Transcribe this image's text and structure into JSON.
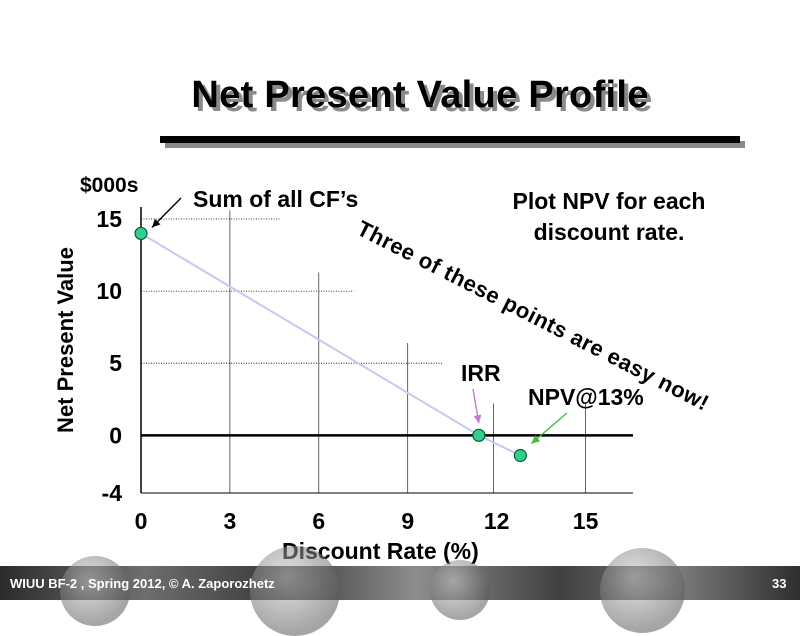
{
  "slide": {
    "title": "Net Present Value Profile",
    "footer": "WIUU BF-2 , Spring 2012, © A. Zaporozhetz",
    "page_number": "33"
  },
  "chart_data": {
    "type": "line",
    "title": "Net Present Value Profile",
    "xlabel": "Discount Rate (%)",
    "ylabel": "Net Present Value",
    "y_unit": "$000s",
    "x_ticks": [
      "0",
      "3",
      "6",
      "9",
      "12",
      "15"
    ],
    "y_ticks": [
      "15",
      "10",
      "5",
      "0",
      "-4"
    ],
    "xlim": [
      0,
      16.6
    ],
    "ylim": [
      -4,
      15
    ],
    "grid": "partial",
    "series": [
      {
        "points": [
          {
            "x": 0,
            "y": 14
          },
          {
            "x": 11.4,
            "y": 0
          },
          {
            "x": 12.8,
            "y": -1.4
          }
        ]
      }
    ],
    "annotations": {
      "sum_of_cfs": "Sum of all CF’s",
      "plot_note": "Plot NPV for each discount rate.",
      "easy_note": "Three of these points are easy now!",
      "irr": "IRR",
      "npv_at": "NPV@13%"
    },
    "colors": {
      "line": "#c8c8f0",
      "point": "#2fcf8c",
      "irr_arrow": "#c87ad6",
      "npv_arrow": "#3bbf3b"
    }
  }
}
